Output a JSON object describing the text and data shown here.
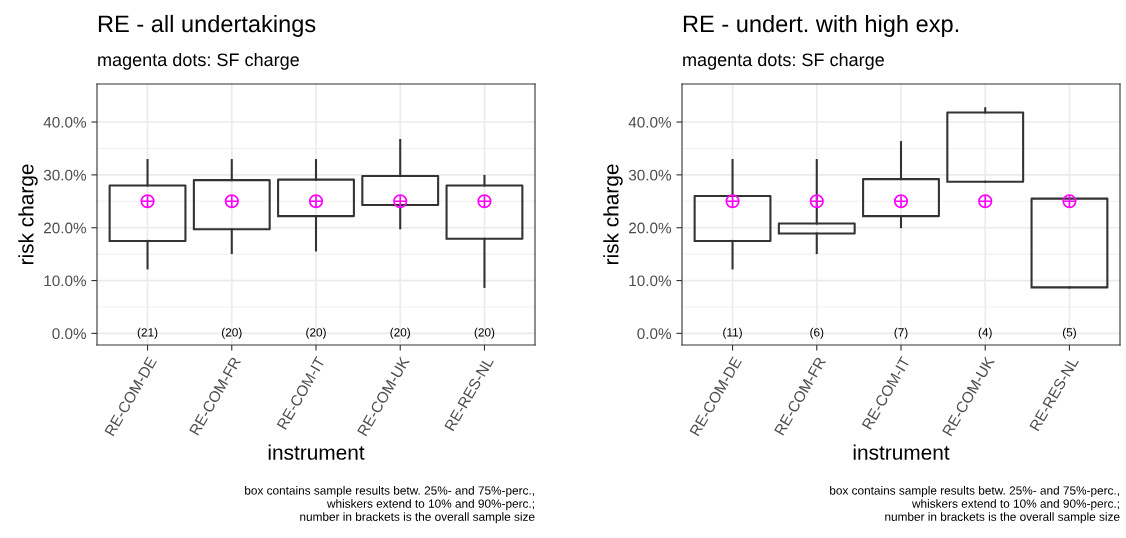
{
  "chart_data": [
    {
      "type": "box",
      "title": "RE - all undertakings",
      "subtitle": "magenta dots: SF charge",
      "xlabel": "instrument",
      "ylabel": "risk charge",
      "categories": [
        "RE-COM-DE",
        "RE-COM-FR",
        "RE-COM-IT",
        "RE-COM-UK",
        "RE-RES-NL"
      ],
      "boxes": [
        {
          "low": 12.3,
          "q1": 17.5,
          "q3": 28.0,
          "high": 32.8
        },
        {
          "low": 15.2,
          "q1": 19.7,
          "q3": 29.0,
          "high": 32.8
        },
        {
          "low": 15.7,
          "q1": 22.2,
          "q3": 29.1,
          "high": 32.8
        },
        {
          "low": 19.9,
          "q1": 24.3,
          "q3": 29.8,
          "high": 36.6
        },
        {
          "low": 8.8,
          "q1": 17.9,
          "q3": 28.0,
          "high": 29.8
        }
      ],
      "series": [
        {
          "type": "scatter",
          "color": "#ff00ff",
          "marker": "cross",
          "x": [
            "RE-COM-DE",
            "RE-COM-FR",
            "RE-COM-IT",
            "RE-COM-UK",
            "RE-RES-NL"
          ],
          "values": [
            25.0,
            25.0,
            25.0,
            25.0,
            25.0
          ]
        }
      ],
      "ylim": [
        -2.2,
        47.2
      ],
      "yticks": [
        {
          "value": 0,
          "label": "0.0%"
        },
        {
          "value": 10,
          "label": "10.0%"
        },
        {
          "value": 20,
          "label": "20.0%"
        },
        {
          "value": 30,
          "label": "30.0%"
        },
        {
          "value": 40,
          "label": "40.0%"
        }
      ],
      "grid": true,
      "legend": false,
      "annotations": [
        "(21)",
        "(20)",
        "(20)",
        "(20)",
        "(20)",
        "box contains sample results betw. 25%- and 75%-perc.,\nwhiskers extend to 10% and 90%-perc.;\nnumber in brackets is the overall sample size"
      ]
    },
    {
      "type": "box",
      "title": "RE - undert. with high exp.",
      "subtitle": "magenta dots: SF charge",
      "xlabel": "instrument",
      "ylabel": "risk charge",
      "categories": [
        "RE-COM-DE",
        "RE-COM-FR",
        "RE-COM-IT",
        "RE-COM-UK",
        "RE-RES-NL"
      ],
      "boxes": [
        {
          "low": 12.3,
          "q1": 17.5,
          "q3": 26.0,
          "high": 32.8
        },
        {
          "low": 15.2,
          "q1": 18.9,
          "q3": 20.8,
          "high": 32.8
        },
        {
          "low": 20.1,
          "q1": 22.2,
          "q3": 29.2,
          "high": 36.2
        },
        {
          "low": 28.7,
          "q1": 28.7,
          "q3": 41.8,
          "high": 42.6
        },
        {
          "low": 8.7,
          "q1": 8.7,
          "q3": 25.5,
          "high": 25.5
        }
      ],
      "series": [
        {
          "type": "scatter",
          "color": "#ff00ff",
          "marker": "cross",
          "x": [
            "RE-COM-DE",
            "RE-COM-FR",
            "RE-COM-IT",
            "RE-COM-UK",
            "RE-RES-NL"
          ],
          "values": [
            25.0,
            25.0,
            25.0,
            25.0,
            25.0
          ]
        }
      ],
      "ylim": [
        -2.2,
        47.2
      ],
      "yticks": [
        {
          "value": 0,
          "label": "0.0%"
        },
        {
          "value": 10,
          "label": "10.0%"
        },
        {
          "value": 20,
          "label": "20.0%"
        },
        {
          "value": 30,
          "label": "30.0%"
        },
        {
          "value": 40,
          "label": "40.0%"
        }
      ],
      "grid": true,
      "legend": false,
      "annotations": [
        "(11)",
        "(6)",
        "(7)",
        "(4)",
        "(5)",
        "box contains sample results betw. 25%- and 75%-perc.,\nwhiskers extend to 10% and 90%-perc.;\nnumber in brackets is the overall sample size"
      ]
    }
  ]
}
